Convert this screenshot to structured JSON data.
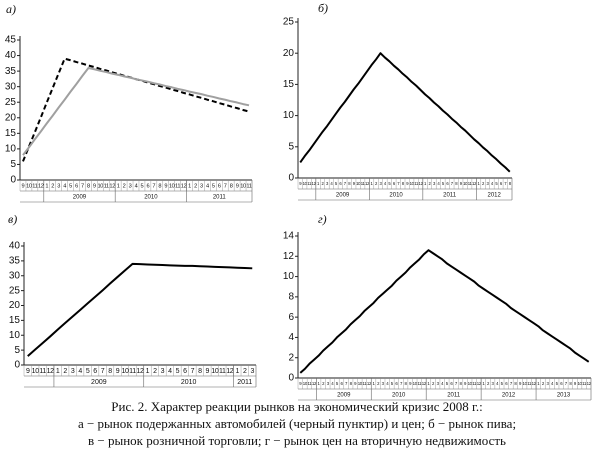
{
  "chart_data": [
    {
      "type": "line",
      "panel_label": "а)",
      "categories": [
        "9",
        "10",
        "11",
        "12",
        "1",
        "2",
        "3",
        "4",
        "5",
        "6",
        "7",
        "8",
        "9",
        "10",
        "11",
        "12",
        "1",
        "2",
        "3",
        "4",
        "5",
        "6",
        "7",
        "8",
        "9",
        "10",
        "11",
        "12",
        "1",
        "2",
        "3",
        "4",
        "5",
        "6",
        "7",
        "8",
        "9",
        "10",
        "11"
      ],
      "year_labels": [
        "2009",
        "2010",
        "2011"
      ],
      "ylim": [
        0,
        45
      ],
      "yticks": [
        0,
        5,
        10,
        15,
        20,
        25,
        30,
        35,
        40,
        45
      ],
      "series": [
        {
          "color": "#000000",
          "line_style": "dashed",
          "values": [
            6,
            10.7,
            15.4,
            20.1,
            24.9,
            29.6,
            34.3,
            39,
            38.5,
            37.9,
            37.4,
            36.8,
            36.3,
            35.7,
            35.2,
            34.6,
            34.1,
            33.5,
            33.0,
            32.4,
            31.9,
            31.3,
            30.8,
            30.2,
            29.7,
            29.1,
            28.6,
            28.0,
            27.5,
            26.9,
            26.4,
            25.8,
            25.3,
            24.7,
            24.2,
            23.6,
            23.1,
            22.5,
            22.0
          ]
        },
        {
          "color": "#a0a0a0",
          "line_style": "solid",
          "values": [
            8,
            10.5,
            13.1,
            15.6,
            18.2,
            20.7,
            23.3,
            25.8,
            28.4,
            30.9,
            33.5,
            36,
            35.6,
            35.1,
            34.7,
            34.2,
            33.8,
            33.3,
            32.9,
            32.4,
            32.0,
            31.6,
            31.1,
            30.7,
            30.2,
            29.8,
            29.3,
            28.9,
            28.4,
            28.0,
            27.6,
            27.1,
            26.7,
            26.2,
            25.8,
            25.3,
            24.9,
            24.4,
            24.0
          ]
        }
      ]
    },
    {
      "type": "line",
      "panel_label": "б)",
      "categories": [
        "9",
        "10",
        "11",
        "12",
        "1",
        "2",
        "3",
        "4",
        "5",
        "6",
        "7",
        "8",
        "9",
        "10",
        "11",
        "12",
        "1",
        "2",
        "3",
        "4",
        "5",
        "6",
        "7",
        "8",
        "9",
        "10",
        "11",
        "12",
        "1",
        "2",
        "3",
        "4",
        "5",
        "6",
        "7",
        "8",
        "9",
        "10",
        "11",
        "12",
        "1",
        "2",
        "3",
        "4",
        "5",
        "6",
        "7",
        "8"
      ],
      "year_labels": [
        "2009",
        "2010",
        "2011",
        "2012"
      ],
      "ylim": [
        0,
        25
      ],
      "yticks": [
        0,
        5,
        10,
        15,
        20,
        25
      ],
      "series": [
        {
          "color": "#000000",
          "line_style": "solid",
          "values": [
            2.5,
            3.5,
            4.4,
            5.4,
            6.4,
            7.4,
            8.3,
            9.3,
            10.3,
            11.3,
            12.2,
            13.2,
            14.2,
            15.1,
            16.1,
            17.1,
            18.1,
            19.0,
            20.0,
            19.3,
            18.7,
            18.0,
            17.4,
            16.7,
            16.1,
            15.4,
            14.8,
            14.1,
            13.4,
            12.8,
            12.1,
            11.5,
            10.8,
            10.2,
            9.5,
            8.9,
            8.2,
            7.6,
            6.9,
            6.2,
            5.6,
            4.9,
            4.3,
            3.6,
            3.0,
            2.3,
            1.7,
            1.0
          ]
        }
      ]
    },
    {
      "type": "line",
      "panel_label": "в)",
      "categories": [
        "9",
        "10",
        "11",
        "12",
        "1",
        "2",
        "3",
        "4",
        "5",
        "6",
        "7",
        "8",
        "9",
        "10",
        "11",
        "12",
        "1",
        "2",
        "3",
        "4",
        "5",
        "6",
        "7",
        "8",
        "9",
        "10",
        "11",
        "12",
        "1",
        "2",
        "3"
      ],
      "year_labels": [
        "2009",
        "2010",
        "2011"
      ],
      "ylim": [
        0,
        40
      ],
      "yticks": [
        0,
        5,
        10,
        15,
        20,
        25,
        30,
        35,
        40
      ],
      "series": [
        {
          "color": "#000000",
          "line_style": "solid",
          "values": [
            3,
            5.2,
            7.4,
            9.6,
            11.9,
            14.1,
            16.3,
            18.5,
            20.7,
            22.9,
            25.1,
            27.4,
            29.6,
            31.8,
            34,
            33.9,
            33.8,
            33.7,
            33.6,
            33.5,
            33.4,
            33.3,
            33.3,
            33.2,
            33.1,
            33.0,
            32.9,
            32.8,
            32.7,
            32.6,
            32.5
          ]
        }
      ]
    },
    {
      "type": "line",
      "panel_label": "г)",
      "categories": [
        "9",
        "10",
        "11",
        "12",
        "1",
        "2",
        "3",
        "4",
        "5",
        "6",
        "7",
        "8",
        "9",
        "10",
        "11",
        "12",
        "1",
        "2",
        "3",
        "4",
        "5",
        "6",
        "7",
        "8",
        "9",
        "10",
        "11",
        "12",
        "1",
        "2",
        "3",
        "4",
        "5",
        "6",
        "7",
        "8",
        "9",
        "10",
        "11",
        "12",
        "1",
        "2",
        "3",
        "4",
        "5",
        "6",
        "7",
        "8",
        "9",
        "10",
        "11",
        "12",
        "1",
        "2",
        "3",
        "4",
        "5",
        "6",
        "7",
        "8",
        "9",
        "10",
        "11",
        "12"
      ],
      "year_labels": [
        "2009",
        "2010",
        "2011",
        "2012",
        "2013"
      ],
      "ylim": [
        0,
        14
      ],
      "yticks": [
        0,
        2,
        4,
        6,
        8,
        10,
        12,
        14
      ],
      "series": [
        {
          "color": "#000000",
          "line_style": "solid",
          "values": [
            0.5,
            0.9,
            1.4,
            1.8,
            2.2,
            2.7,
            3.1,
            3.5,
            4.0,
            4.4,
            4.8,
            5.3,
            5.7,
            6.1,
            6.6,
            7.0,
            7.4,
            7.9,
            8.3,
            8.7,
            9.1,
            9.6,
            10.0,
            10.4,
            10.9,
            11.3,
            11.7,
            12.2,
            12.6,
            12.3,
            12.0,
            11.7,
            11.3,
            11.0,
            10.7,
            10.4,
            10.1,
            9.8,
            9.5,
            9.1,
            8.8,
            8.5,
            8.2,
            7.9,
            7.6,
            7.3,
            6.9,
            6.6,
            6.3,
            6.0,
            5.7,
            5.4,
            5.1,
            4.7,
            4.4,
            4.1,
            3.8,
            3.5,
            3.2,
            2.9,
            2.5,
            2.2,
            1.9,
            1.6
          ]
        }
      ]
    }
  ],
  "caption": {
    "lines": [
      "Рис. 2. Характер реакции рынков на экономический кризис 2008 г.:",
      "а − рынок подержанных автомобилей (черный пунктир) и цен; б − рынок пива;",
      "в − рынок розничной торговли; г − рынок цен на вторичную недвижимость"
    ]
  }
}
